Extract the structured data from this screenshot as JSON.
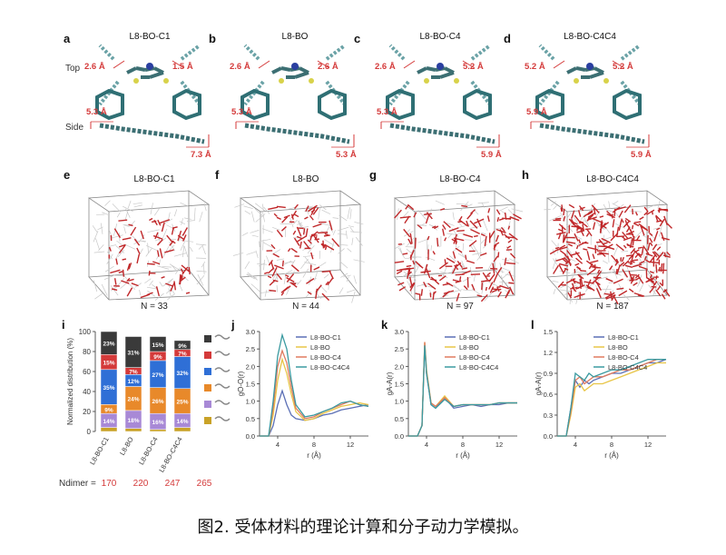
{
  "panels_top": [
    {
      "letter": "a",
      "title": "L8-BO-C1",
      "dims": [
        "2.6 Å",
        "1.5 Å",
        "5.3 Å",
        "7.3 Å"
      ]
    },
    {
      "letter": "b",
      "title": "L8-BO",
      "dims": [
        "2.6 Å",
        "2.6 Å",
        "5.3 Å",
        "5.3 Å"
      ]
    },
    {
      "letter": "c",
      "title": "L8-BO-C4",
      "dims": [
        "2.6 Å",
        "5.2 Å",
        "5.3 Å",
        "5.9 Å"
      ]
    },
    {
      "letter": "d",
      "title": "L8-BO-C4C4",
      "dims": [
        "5.2 Å",
        "5.2 Å",
        "5.9 Å",
        "5.9 Å"
      ]
    }
  ],
  "row_labels": {
    "top": "Top",
    "side": "Side"
  },
  "panels_mid": [
    {
      "letter": "e",
      "title": "L8-BO-C1",
      "n_label": "N = 33"
    },
    {
      "letter": "f",
      "title": "L8-BO",
      "n_label": "N = 44"
    },
    {
      "letter": "g",
      "title": "L8-BO-C4",
      "n_label": "N = 97"
    },
    {
      "letter": "h",
      "title": "L8-BO-C4C4",
      "n_label": "N = 187"
    }
  ],
  "bottom_letters": [
    "i",
    "j",
    "k",
    "l"
  ],
  "caption": "图2. 受体材料的理论计算和分子动力学模拟。",
  "colors": {
    "red": "#d43a3a",
    "dark": "#3a3a3a",
    "blue": "#2f6fd6",
    "orange": "#e8892a",
    "purple": "#a889d6",
    "yellow": "#c9a227",
    "teal": "#5a9aa0"
  },
  "chart_data": [
    {
      "type": "bar",
      "stacked": true,
      "categories": [
        "L8-BO-C1",
        "L8-BO",
        "L8-BO-C4",
        "L8-BO-C4C4"
      ],
      "ylabel": "Normalized distribution (%)",
      "ylim": [
        0,
        100
      ],
      "yticks": [
        0,
        20,
        40,
        60,
        80,
        100
      ],
      "series": [
        {
          "color": "#c9a227",
          "values": [
            4,
            3,
            2,
            4
          ],
          "labels": [
            "",
            "",
            "",
            ""
          ]
        },
        {
          "color": "#a889d6",
          "values": [
            14,
            18,
            16,
            14
          ],
          "labels": [
            "14%",
            "18%",
            "16%",
            "14%"
          ]
        },
        {
          "color": "#e8892a",
          "values": [
            9,
            24,
            26,
            25
          ],
          "labels": [
            "9%",
            "24%",
            "26%",
            "25%"
          ]
        },
        {
          "color": "#2f6fd6",
          "values": [
            35,
            12,
            27,
            32
          ],
          "labels": [
            "35%",
            "12%",
            "27%",
            "32%"
          ]
        },
        {
          "color": "#d43a3a",
          "values": [
            15,
            7,
            9,
            7
          ],
          "labels": [
            "15%",
            "7%",
            "9%",
            "7%"
          ]
        },
        {
          "color": "#3a3a3a",
          "values": [
            23,
            31,
            15,
            9
          ],
          "labels": [
            "23%",
            "31%",
            "15%",
            "9%"
          ]
        }
      ],
      "ndimer_label": "Ndimer =",
      "ndimer_values": [
        "170",
        "220",
        "247",
        "265"
      ]
    },
    {
      "type": "line",
      "ylabel": "gO-O(r)",
      "xlabel": "r (Å)",
      "xlim": [
        2,
        14
      ],
      "ylim": [
        0,
        3.0
      ],
      "xticks": [
        4,
        8,
        12
      ],
      "yticks": [
        0,
        0.5,
        1.0,
        1.5,
        2.0,
        2.5,
        3.0
      ],
      "legend": [
        "L8-BO-C1",
        "L8-BO",
        "L8-BO-C4",
        "L8-BO-C4C4"
      ],
      "series": [
        {
          "name": "L8-BO-C1",
          "color": "#5b6fb5",
          "x": [
            2,
            3,
            3.5,
            4,
            4.5,
            5,
            5.5,
            6,
            7,
            8,
            9,
            10,
            11,
            12,
            13,
            14
          ],
          "y": [
            0,
            0,
            0.3,
            0.9,
            1.3,
            0.9,
            0.6,
            0.5,
            0.45,
            0.5,
            0.6,
            0.65,
            0.75,
            0.8,
            0.85,
            0.9
          ]
        },
        {
          "name": "L8-BO",
          "color": "#e8c547",
          "x": [
            2,
            3,
            3.5,
            4,
            4.5,
            5,
            5.5,
            6,
            7,
            8,
            9,
            10,
            11,
            12,
            13,
            14
          ],
          "y": [
            0,
            0,
            0.6,
            1.6,
            2.2,
            1.8,
            1.2,
            0.7,
            0.45,
            0.5,
            0.65,
            0.75,
            0.85,
            0.9,
            0.95,
            0.9
          ]
        },
        {
          "name": "L8-BO-C4",
          "color": "#e07a5f",
          "x": [
            2,
            3,
            3.5,
            4,
            4.5,
            5,
            5.5,
            6,
            7,
            8,
            9,
            10,
            11,
            12,
            13,
            14
          ],
          "y": [
            0,
            0,
            0.8,
            2.0,
            2.45,
            2.1,
            1.4,
            0.8,
            0.5,
            0.55,
            0.7,
            0.8,
            0.9,
            1.0,
            0.9,
            0.85
          ]
        },
        {
          "name": "L8-BO-C4C4",
          "color": "#3a9aa0",
          "x": [
            2,
            3,
            3.5,
            4,
            4.5,
            5,
            5.5,
            6,
            7,
            8,
            9,
            10,
            11,
            12,
            13,
            14
          ],
          "y": [
            0,
            0,
            1.0,
            2.3,
            2.9,
            2.5,
            1.6,
            0.9,
            0.55,
            0.6,
            0.7,
            0.8,
            0.95,
            1.0,
            0.9,
            0.85
          ]
        }
      ]
    },
    {
      "type": "line",
      "ylabel": "gA-A(r)",
      "xlabel": "r (Å)",
      "xlim": [
        2,
        14
      ],
      "ylim": [
        0,
        3.0
      ],
      "xticks": [
        4,
        8,
        12
      ],
      "yticks": [
        0,
        0.5,
        1.0,
        1.5,
        2.0,
        2.5,
        3.0
      ],
      "legend": [
        "L8-BO-C1",
        "L8-BO",
        "L8-BO-C4",
        "L8-BO-C4C4"
      ],
      "series": [
        {
          "name": "L8-BO-C1",
          "color": "#5b6fb5",
          "x": [
            2,
            3,
            3.5,
            3.8,
            4,
            4.5,
            5,
            6,
            7,
            8,
            9,
            10,
            11,
            12,
            13,
            14
          ],
          "y": [
            0,
            0,
            0.3,
            2.6,
            1.8,
            0.9,
            0.8,
            1.1,
            0.8,
            0.85,
            0.9,
            0.85,
            0.9,
            0.9,
            0.95,
            0.95
          ]
        },
        {
          "name": "L8-BO",
          "color": "#e8c547",
          "x": [
            2,
            3,
            3.5,
            3.8,
            4,
            4.5,
            5,
            6,
            7,
            8,
            9,
            10,
            11,
            12,
            13,
            14
          ],
          "y": [
            0,
            0,
            0.3,
            2.7,
            1.9,
            0.95,
            0.85,
            1.15,
            0.85,
            0.9,
            0.9,
            0.9,
            0.9,
            0.95,
            0.95,
            0.95
          ]
        },
        {
          "name": "L8-BO-C4",
          "color": "#e07a5f",
          "x": [
            2,
            3,
            3.5,
            3.8,
            4,
            4.5,
            5,
            6,
            7,
            8,
            9,
            10,
            11,
            12,
            13,
            14
          ],
          "y": [
            0,
            0,
            0.3,
            2.7,
            1.85,
            0.95,
            0.85,
            1.1,
            0.85,
            0.9,
            0.9,
            0.9,
            0.9,
            0.95,
            0.95,
            0.95
          ]
        },
        {
          "name": "L8-BO-C4C4",
          "color": "#3a9aa0",
          "x": [
            2,
            3,
            3.5,
            3.8,
            4,
            4.5,
            5,
            6,
            7,
            8,
            9,
            10,
            11,
            12,
            13,
            14
          ],
          "y": [
            0,
            0,
            0.3,
            2.6,
            1.8,
            0.9,
            0.8,
            1.05,
            0.85,
            0.9,
            0.9,
            0.9,
            0.9,
            0.95,
            0.95,
            0.95
          ]
        }
      ]
    },
    {
      "type": "line",
      "ylabel": "gA-A(r)",
      "xlabel": "r (Å)",
      "xlim": [
        2,
        14
      ],
      "ylim": [
        0,
        1.5
      ],
      "xticks": [
        4,
        8,
        12
      ],
      "yticks": [
        0,
        0.3,
        0.6,
        0.9,
        1.2,
        1.5
      ],
      "legend": [
        "L8-BO-C1",
        "L8-BO",
        "L8-BO-C4",
        "L8-BO-C4C4"
      ],
      "series": [
        {
          "name": "L8-BO-C1",
          "color": "#5b6fb5",
          "x": [
            2,
            3,
            3.5,
            4,
            4.5,
            5,
            5.5,
            6,
            7,
            8,
            9,
            10,
            11,
            12,
            13,
            14
          ],
          "y": [
            0,
            0,
            0.4,
            0.8,
            0.7,
            0.8,
            0.75,
            0.8,
            0.85,
            0.9,
            0.9,
            0.95,
            1.0,
            1.05,
            1.05,
            1.1
          ]
        },
        {
          "name": "L8-BO",
          "color": "#e8c547",
          "x": [
            2,
            3,
            3.5,
            4,
            4.5,
            5,
            5.5,
            6,
            7,
            8,
            9,
            10,
            11,
            12,
            13,
            14
          ],
          "y": [
            0,
            0,
            0.3,
            0.7,
            0.75,
            0.65,
            0.7,
            0.75,
            0.75,
            0.8,
            0.85,
            0.9,
            0.95,
            1.0,
            1.05,
            1.05
          ]
        },
        {
          "name": "L8-BO-C4",
          "color": "#e07a5f",
          "x": [
            2,
            3,
            3.5,
            4,
            4.5,
            5,
            5.5,
            6,
            7,
            8,
            9,
            10,
            11,
            12,
            13,
            14
          ],
          "y": [
            0,
            0,
            0.35,
            0.8,
            0.85,
            0.75,
            0.8,
            0.85,
            0.85,
            0.9,
            0.95,
            0.95,
            1.0,
            1.05,
            1.1,
            1.1
          ]
        },
        {
          "name": "L8-BO-C4C4",
          "color": "#3a9aa0",
          "x": [
            2,
            3,
            3.5,
            4,
            4.5,
            5,
            5.5,
            6,
            7,
            8,
            9,
            10,
            11,
            12,
            13,
            14
          ],
          "y": [
            0,
            0,
            0.4,
            0.9,
            0.85,
            0.8,
            0.9,
            0.85,
            0.9,
            0.95,
            0.95,
            1.0,
            1.05,
            1.1,
            1.1,
            1.1
          ]
        }
      ]
    }
  ]
}
